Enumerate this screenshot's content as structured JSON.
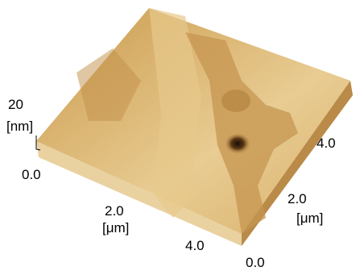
{
  "z_axis": {
    "tick": "20",
    "unit": "[nm]"
  },
  "x_axis": {
    "ticks": [
      "0.0",
      "2.0",
      "4.0"
    ],
    "unit": "[μm]"
  },
  "y_axis": {
    "ticks": [
      "0.0",
      "2.0",
      "4.0"
    ],
    "unit": "[μm]"
  }
}
